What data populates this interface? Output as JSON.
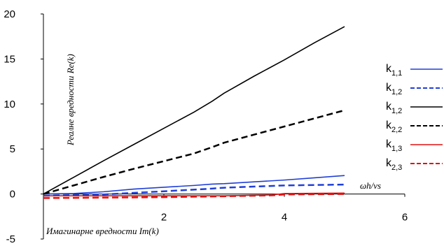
{
  "chart_data": {
    "type": "line",
    "ylabel": "Реалне вредности Re(k)",
    "xlabel": "Имагинарне вредности Im(k)",
    "axis_annotation": "ωh/νs",
    "xlim": [
      0,
      6
    ],
    "ylim": [
      -5,
      20
    ],
    "x_ticks": [
      "2",
      "4",
      "6"
    ],
    "y_ticks": [
      "-5",
      "0",
      "5",
      "10",
      "15",
      "20"
    ],
    "grid": false,
    "legend_position": "right",
    "series": [
      {
        "name": "k1,1",
        "name_main": "k",
        "name_sub": "1,1",
        "color": "#1f3fd6",
        "dash": "solid",
        "x": [
          0,
          0.5,
          1,
          1.5,
          2,
          2.5,
          2.8,
          3,
          3.5,
          4,
          4.5,
          5
        ],
        "y": [
          0,
          0.05,
          0.25,
          0.55,
          0.75,
          0.95,
          1.1,
          1.15,
          1.35,
          1.55,
          1.8,
          2.05
        ]
      },
      {
        "name": "k1,2",
        "name_main": "k",
        "name_sub": "1,2",
        "color": "#1f3fd6",
        "dash": "dashed",
        "x": [
          0,
          1,
          2,
          2.8,
          3,
          4,
          5
        ],
        "y": [
          -0.2,
          -0.05,
          0.3,
          0.6,
          0.7,
          0.95,
          1.05
        ]
      },
      {
        "name": "k1,2",
        "name_main": "k",
        "name_sub": "1,2",
        "color": "#000000",
        "dash": "solid",
        "x": [
          0,
          0.5,
          1,
          1.5,
          2,
          2.5,
          2.8,
          3,
          3.5,
          4,
          4.5,
          5
        ],
        "y": [
          0,
          1.85,
          3.7,
          5.5,
          7.3,
          9.1,
          10.3,
          11.2,
          13.1,
          14.9,
          16.8,
          18.6
        ]
      },
      {
        "name": "k2,2",
        "name_main": "k",
        "name_sub": "2,2",
        "color": "#000000",
        "dash": "dashed",
        "x": [
          0,
          0.5,
          1,
          1.5,
          2,
          2.5,
          2.8,
          3,
          3.5,
          4,
          4.5,
          5
        ],
        "y": [
          0,
          0.95,
          1.9,
          2.8,
          3.65,
          4.5,
          5.2,
          5.7,
          6.6,
          7.5,
          8.4,
          9.3
        ]
      },
      {
        "name": "k1,3",
        "name_main": "k",
        "name_sub": "1,3",
        "color": "#e01010",
        "dash": "solid",
        "x": [
          0,
          1,
          2,
          3,
          3.8,
          4,
          5
        ],
        "y": [
          -0.2,
          -0.2,
          -0.2,
          -0.2,
          -0.1,
          0.05,
          0.1
        ]
      },
      {
        "name": "k2,3",
        "name_main": "k",
        "name_sub": "2,3",
        "color": "#e01010",
        "dash": "dashed",
        "x": [
          0,
          1,
          2,
          3,
          3.8,
          4,
          5
        ],
        "y": [
          -0.45,
          -0.4,
          -0.35,
          -0.25,
          -0.15,
          -0.05,
          0.0
        ]
      }
    ]
  }
}
